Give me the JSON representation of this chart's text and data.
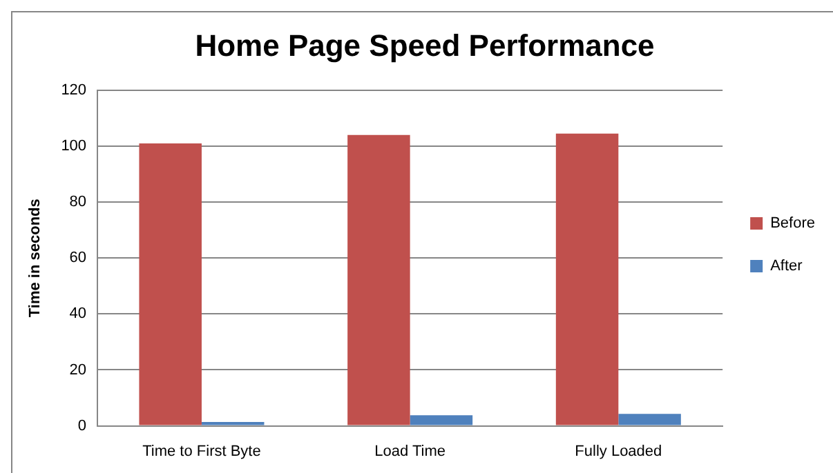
{
  "chart_data": {
    "type": "bar",
    "title": "Home Page Speed Performance",
    "ylabel": "Time in seconds",
    "categories": [
      "Time to First Byte",
      "Load Time",
      "Fully Loaded"
    ],
    "series": [
      {
        "name": "Before",
        "color": "#c0504d",
        "values": [
          101,
          104,
          104.5
        ]
      },
      {
        "name": "After",
        "color": "#4f81bd",
        "values": [
          1.4,
          3.8,
          4.3
        ]
      }
    ],
    "ylim": [
      0,
      120
    ],
    "yticks": [
      0,
      20,
      40,
      60,
      80,
      100,
      120
    ],
    "grid": "y",
    "legend": "right"
  }
}
